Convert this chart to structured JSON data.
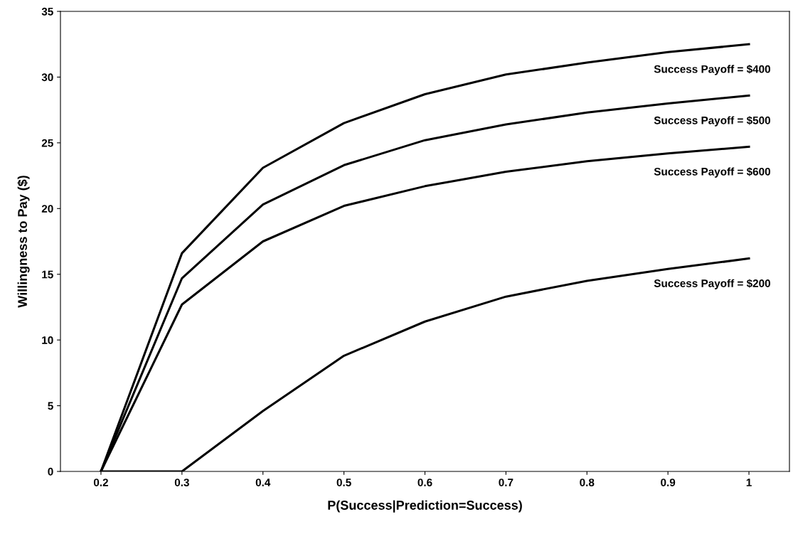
{
  "chart_data": {
    "type": "line",
    "xlabel": "P(Success|Prediction=Success)",
    "ylabel": "Willingness to Pay ($)",
    "categories": [
      "0.2",
      "0.3",
      "0.4",
      "0.5",
      "0.6",
      "0.7",
      "0.8",
      "0.9",
      "1"
    ],
    "ylim": [
      0,
      35
    ],
    "yticks": [
      0,
      5,
      10,
      15,
      20,
      25,
      30,
      35
    ],
    "grid": false,
    "legend": false,
    "marker": "none",
    "line_style": "solid",
    "series": [
      {
        "name": "Success Payoff = $400",
        "color": "#000000",
        "values": [
          0,
          16.6,
          23.1,
          26.5,
          28.7,
          30.2,
          31.1,
          31.9,
          32.5
        ]
      },
      {
        "name": "Success Payoff = $500",
        "color": "#000000",
        "values": [
          0,
          14.7,
          20.3,
          23.3,
          25.2,
          26.4,
          27.3,
          28.0,
          28.6
        ]
      },
      {
        "name": "Success Payoff = $600",
        "color": "#000000",
        "values": [
          0,
          12.7,
          17.5,
          20.2,
          21.7,
          22.8,
          23.6,
          24.2,
          24.7
        ]
      },
      {
        "name": "Success Payoff = $200",
        "color": "#000000",
        "values": [
          0,
          0,
          4.6,
          8.8,
          11.4,
          13.3,
          14.5,
          15.4,
          16.2
        ]
      }
    ]
  }
}
